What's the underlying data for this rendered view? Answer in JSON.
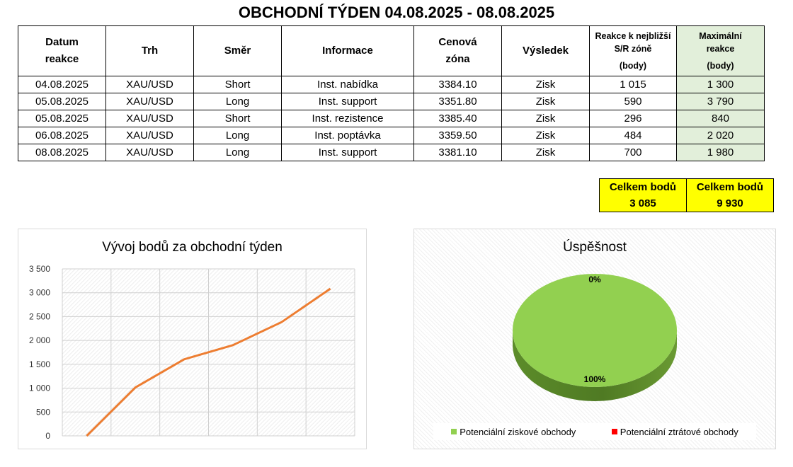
{
  "title": "OBCHODNÍ TÝDEN 04.08.2025 - 08.08.2025",
  "table": {
    "headers": {
      "date": [
        "Datum",
        "reakce"
      ],
      "market": "Trh",
      "direction": "Směr",
      "info": "Informace",
      "zone": [
        "Cenová",
        "zóna"
      ],
      "result": "Výsledek",
      "reaction": [
        "Reakce k nejbližší",
        "S/R zóně",
        "(body)"
      ],
      "max": [
        "Maximální",
        "reakce",
        "(body)"
      ]
    },
    "rows": [
      {
        "date": "04.08.2025",
        "market": "XAU/USD",
        "direction": "Short",
        "info": "Inst. nabídka",
        "zone": "3384.10",
        "result": "Zisk",
        "reaction": "1 015",
        "max": "1 300"
      },
      {
        "date": "05.08.2025",
        "market": "XAU/USD",
        "direction": "Long",
        "info": "Inst. support",
        "zone": "3351.80",
        "result": "Zisk",
        "reaction": "590",
        "max": "3 790"
      },
      {
        "date": "05.08.2025",
        "market": "XAU/USD",
        "direction": "Short",
        "info": "Inst. rezistence",
        "zone": "3385.40",
        "result": "Zisk",
        "reaction": "296",
        "max": "840"
      },
      {
        "date": "06.08.2025",
        "market": "XAU/USD",
        "direction": "Long",
        "info": "Inst. poptávka",
        "zone": "3359.50",
        "result": "Zisk",
        "reaction": "484",
        "max": "2 020"
      },
      {
        "date": "08.08.2025",
        "market": "XAU/USD",
        "direction": "Long",
        "info": "Inst. support",
        "zone": "3381.10",
        "result": "Zisk",
        "reaction": "700",
        "max": "1 980"
      }
    ]
  },
  "totals": {
    "reaction_label": "Celkem bodů",
    "reaction_value": "3 085",
    "max_label": "Celkem bodů",
    "max_value": "9 930"
  },
  "colors": {
    "line": "#ed7d31",
    "pie_win": "#92d050",
    "pie_loss": "#ff0000",
    "total_bg": "#ffff00",
    "max_bg": "#e2efda"
  },
  "chart_data": [
    {
      "type": "line",
      "title": "Vývoj bodů za obchodní týden",
      "x": [
        0,
        1,
        2,
        3,
        4,
        5
      ],
      "y": [
        0,
        1015,
        1605,
        1901,
        2385,
        3085
      ],
      "ylim": [
        0,
        3500
      ],
      "yticks": [
        "0",
        "500",
        "1 000",
        "1 500",
        "2 000",
        "2 500",
        "3 000",
        "3 500"
      ],
      "ytick_values": [
        0,
        500,
        1000,
        1500,
        2000,
        2500,
        3000,
        3500
      ],
      "grid": true
    },
    {
      "type": "pie",
      "title": "Úspěšnost",
      "labels": [
        "Potenciální ziskové obchody",
        "Potenciální ztrátové obchody"
      ],
      "values": [
        100,
        0
      ],
      "value_labels": [
        "100%",
        "0%"
      ],
      "legend": "bottom"
    }
  ]
}
